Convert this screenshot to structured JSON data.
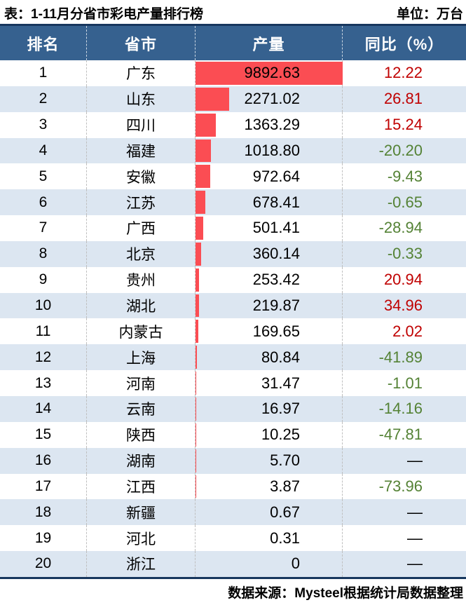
{
  "title": "表：1-11月分省市彩电产量排行榜",
  "unit_label": "单位：万台",
  "footer": "数据来源：Mysteel根据统计局数据整理",
  "columns": [
    "排名",
    "省市",
    "产量",
    "同比（%）"
  ],
  "chart_data": {
    "type": "table",
    "title": "1-11月分省市彩电产量排行榜",
    "unit": "万台",
    "columns": [
      "排名",
      "省市",
      "产量",
      "同比（%）"
    ],
    "max_output": 9892.63,
    "bar_column": "产量",
    "rows": [
      {
        "rank": "1",
        "province": "广东",
        "output": "9892.63",
        "yoy": "12.22"
      },
      {
        "rank": "2",
        "province": "山东",
        "output": "2271.02",
        "yoy": "26.81"
      },
      {
        "rank": "3",
        "province": "四川",
        "output": "1363.29",
        "yoy": "15.24"
      },
      {
        "rank": "4",
        "province": "福建",
        "output": "1018.80",
        "yoy": "-20.20"
      },
      {
        "rank": "5",
        "province": "安徽",
        "output": "972.64",
        "yoy": "-9.43"
      },
      {
        "rank": "6",
        "province": "江苏",
        "output": "678.41",
        "yoy": "-0.65"
      },
      {
        "rank": "7",
        "province": "广西",
        "output": "501.41",
        "yoy": "-28.94"
      },
      {
        "rank": "8",
        "province": "北京",
        "output": "360.14",
        "yoy": "-0.33"
      },
      {
        "rank": "9",
        "province": "贵州",
        "output": "253.42",
        "yoy": "20.94"
      },
      {
        "rank": "10",
        "province": "湖北",
        "output": "219.87",
        "yoy": "34.96"
      },
      {
        "rank": "11",
        "province": "内蒙古",
        "output": "169.65",
        "yoy": "2.02"
      },
      {
        "rank": "12",
        "province": "上海",
        "output": "80.84",
        "yoy": "-41.89"
      },
      {
        "rank": "13",
        "province": "河南",
        "output": "31.47",
        "yoy": "-1.01"
      },
      {
        "rank": "14",
        "province": "云南",
        "output": "16.97",
        "yoy": "-14.16"
      },
      {
        "rank": "15",
        "province": "陕西",
        "output": "10.25",
        "yoy": "-47.81"
      },
      {
        "rank": "16",
        "province": "湖南",
        "output": "5.70",
        "yoy": "—"
      },
      {
        "rank": "17",
        "province": "江西",
        "output": "3.87",
        "yoy": "-73.96"
      },
      {
        "rank": "18",
        "province": "新疆",
        "output": "0.67",
        "yoy": "—"
      },
      {
        "rank": "19",
        "province": "河北",
        "output": "0.31",
        "yoy": "—"
      },
      {
        "rank": "20",
        "province": "浙江",
        "output": "0",
        "yoy": "—"
      }
    ]
  },
  "colors": {
    "header_bg": "#36618F",
    "row_alt_bg": "#DCE6F1",
    "bar_red": "#FB4D53",
    "positive_text": "#C00000",
    "negative_text": "#548235",
    "border_navy": "#17375E"
  }
}
